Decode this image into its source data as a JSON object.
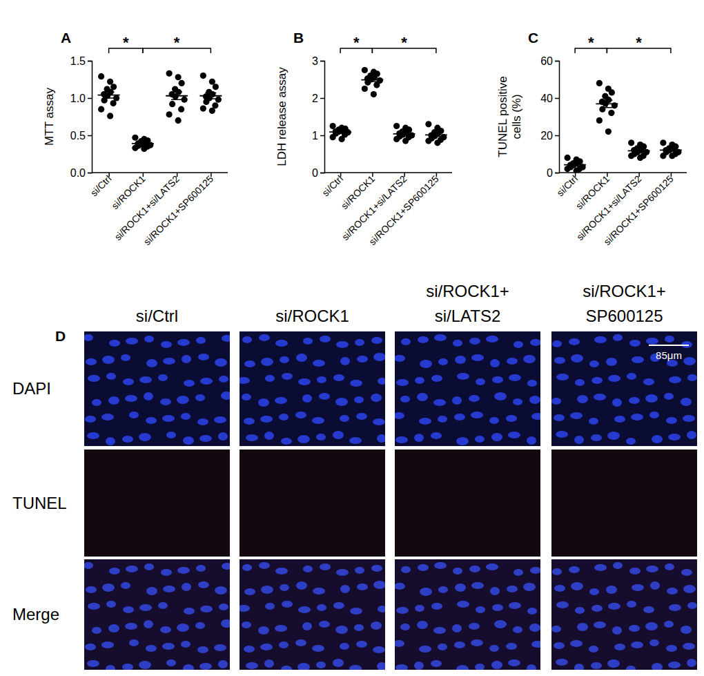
{
  "chart_data": [
    {
      "type": "dot",
      "panel": "A",
      "y_label": [
        "MTT assay"
      ],
      "categories": [
        "si/Ctrl",
        "si/ROCK1",
        "si/ROCK1+si/LATS2",
        "si/ROCK1+SP600125"
      ],
      "points": [
        [
          1.29,
          1.22,
          1.15,
          1.12,
          1.08,
          1.05,
          1.03,
          1.0,
          0.97,
          0.93,
          0.85,
          0.76
        ],
        [
          0.47,
          0.45,
          0.43,
          0.42,
          0.4,
          0.39,
          0.38,
          0.37,
          0.36,
          0.35,
          0.33,
          0.32
        ],
        [
          1.33,
          1.28,
          1.2,
          1.12,
          1.08,
          1.05,
          1.02,
          0.98,
          0.92,
          0.85,
          0.78,
          0.7
        ],
        [
          1.3,
          1.22,
          1.15,
          1.08,
          1.05,
          1.02,
          1.0,
          0.98,
          0.95,
          0.9,
          0.86,
          0.83
        ]
      ],
      "means": [
        1.04,
        0.39,
        1.03,
        1.03
      ],
      "errors": [
        0.04,
        0.015,
        0.05,
        0.04
      ],
      "ylim": [
        0,
        1.5
      ],
      "yticks": [
        {
          "value": 0,
          "label": "0.0"
        },
        {
          "value": 0.5,
          "label": "0.5"
        },
        {
          "value": 1,
          "label": "1.0"
        },
        {
          "value": 1.5,
          "label": "1.5"
        }
      ],
      "annotations": [
        {
          "from": 0,
          "to": 1,
          "label": "*"
        },
        {
          "from": 1,
          "to": 3,
          "label": "*"
        }
      ]
    },
    {
      "type": "dot",
      "panel": "B",
      "y_label": [
        "LDH release assay"
      ],
      "categories": [
        "si/Ctrl",
        "si/ROCK1",
        "si/ROCK1+si/LATS2",
        "si/ROCK1+SP600125"
      ],
      "points": [
        [
          1.25,
          1.2,
          1.18,
          1.15,
          1.12,
          1.1,
          1.1,
          1.08,
          1.05,
          1.02,
          0.95,
          0.9
        ],
        [
          2.75,
          2.7,
          2.65,
          2.6,
          2.55,
          2.52,
          2.5,
          2.47,
          2.42,
          2.35,
          2.25,
          2.1
        ],
        [
          1.25,
          1.2,
          1.15,
          1.1,
          1.07,
          1.05,
          1.02,
          1.0,
          0.97,
          0.95,
          0.9,
          0.85
        ],
        [
          1.3,
          1.2,
          1.12,
          1.08,
          1.05,
          1.0,
          0.98,
          0.95,
          0.92,
          0.88,
          0.85,
          0.8
        ]
      ],
      "means": [
        1.09,
        2.49,
        1.04,
        1.01
      ],
      "errors": [
        0.03,
        0.05,
        0.03,
        0.04
      ],
      "ylim": [
        0,
        3
      ],
      "yticks": [
        0,
        1,
        2,
        3
      ],
      "annotations": [
        {
          "from": 0,
          "to": 1,
          "label": "*"
        },
        {
          "from": 1,
          "to": 3,
          "label": "*"
        }
      ]
    },
    {
      "type": "dot",
      "panel": "C",
      "y_label": [
        "TUNEL positive",
        "cells (%)"
      ],
      "categories": [
        "si/Ctrl",
        "si/ROCK1",
        "si/ROCK1+si/LATS2",
        "si/ROCK1+SP600125"
      ],
      "points": [
        [
          8,
          7,
          6,
          5,
          5,
          4,
          4,
          3,
          3,
          2,
          2,
          1
        ],
        [
          48,
          45,
          43,
          41,
          39,
          38,
          37,
          36,
          34,
          32,
          28,
          22
        ],
        [
          16,
          15,
          14,
          13,
          12,
          12,
          11,
          11,
          10,
          9,
          9,
          8
        ],
        [
          16,
          15,
          14,
          13,
          13,
          12,
          12,
          11,
          11,
          10,
          9,
          9
        ]
      ],
      "means": [
        4.2,
        36.9,
        11.7,
        12.1
      ],
      "errors": [
        0.6,
        2,
        0.7,
        0.6
      ],
      "ylim": [
        0,
        60
      ],
      "yticks": [
        0,
        20,
        40,
        60
      ],
      "annotations": [
        {
          "from": 0,
          "to": 1,
          "label": "*"
        },
        {
          "from": 1,
          "to": 3,
          "label": "*"
        }
      ]
    }
  ],
  "panel_d": {
    "panel": "D",
    "columns": [
      [
        "si/Ctrl"
      ],
      [
        "si/ROCK1"
      ],
      [
        "si/ROCK1+",
        "si/LATS2"
      ],
      [
        "si/ROCK1+",
        "SP600125"
      ]
    ],
    "rows": [
      "DAPI",
      "TUNEL",
      "Merge"
    ],
    "scale_bar": "85μm"
  }
}
